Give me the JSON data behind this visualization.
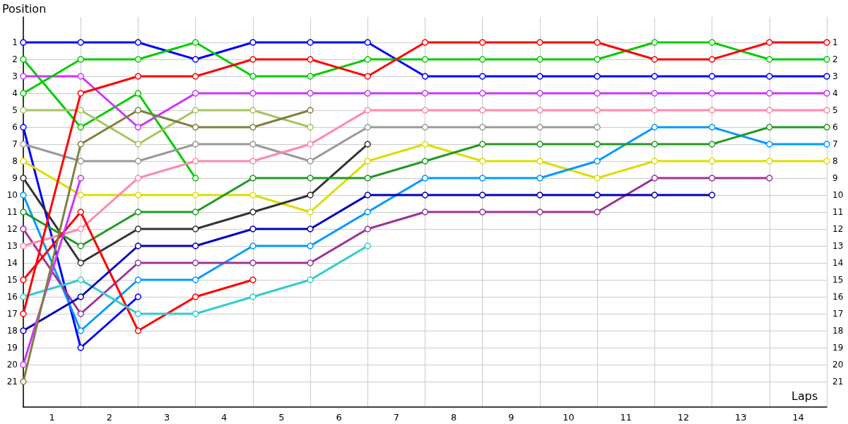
{
  "chart_data": {
    "type": "line",
    "xlabel": "Laps",
    "ylabel": "Position",
    "x": [
      0,
      1,
      2,
      3,
      4,
      5,
      6,
      7,
      8,
      9,
      10,
      11,
      12,
      13,
      14
    ],
    "xlim": [
      0,
      14
    ],
    "xticks": [
      {
        "value": 0,
        "label": null
      },
      {
        "value": 0.5,
        "label": "1"
      },
      {
        "value": 1,
        "label": null
      },
      {
        "value": 1.5,
        "label": "2"
      },
      {
        "value": 2,
        "label": null
      },
      {
        "value": 2.5,
        "label": "3"
      },
      {
        "value": 3,
        "label": null
      },
      {
        "value": 3.5,
        "label": "4"
      },
      {
        "value": 4,
        "label": null
      },
      {
        "value": 4.5,
        "label": "5"
      },
      {
        "value": 5,
        "label": null
      },
      {
        "value": 5.5,
        "label": "6"
      },
      {
        "value": 6,
        "label": null
      },
      {
        "value": 6.5,
        "label": "7"
      },
      {
        "value": 7,
        "label": null
      },
      {
        "value": 7.5,
        "label": "8"
      },
      {
        "value": 8,
        "label": null
      },
      {
        "value": 8.5,
        "label": "9"
      },
      {
        "value": 9,
        "label": null
      },
      {
        "value": 9.5,
        "label": "10"
      },
      {
        "value": 10,
        "label": null
      },
      {
        "value": 10.5,
        "label": "11"
      },
      {
        "value": 11,
        "label": null
      },
      {
        "value": 11.5,
        "label": "12"
      },
      {
        "value": 12,
        "label": null
      },
      {
        "value": 12.5,
        "label": "13"
      },
      {
        "value": 13,
        "label": null
      },
      {
        "value": 13.5,
        "label": "14"
      },
      {
        "value": 14,
        "label": null
      }
    ],
    "ylim": [
      22.5,
      -0.5
    ],
    "yticks": [
      1,
      2,
      3,
      4,
      5,
      6,
      7,
      8,
      9,
      10,
      11,
      12,
      13,
      14,
      15,
      16,
      17,
      18,
      19,
      20,
      21
    ],
    "y2lim": [
      22.5,
      -0.5
    ],
    "y2ticks": [
      1,
      2,
      3,
      4,
      5,
      6,
      7,
      8,
      9,
      10,
      11,
      12,
      13,
      14,
      15,
      16,
      17,
      18,
      19,
      20,
      21
    ],
    "grid": true,
    "marker": "circle",
    "line_style": "solid",
    "series": [
      {
        "color": "#0000ff",
        "values": [
          1,
          1,
          1,
          2,
          1,
          1,
          1,
          3,
          3,
          3,
          3,
          3,
          3,
          3,
          3
        ]
      },
      {
        "color": "#00cc00",
        "values": [
          2,
          6,
          4,
          9,
          null,
          null,
          null,
          null,
          null,
          null,
          null,
          null,
          null,
          null,
          null
        ]
      },
      {
        "color": "#cc33ff",
        "values": [
          3,
          3,
          6,
          4,
          4,
          4,
          4,
          4,
          4,
          4,
          4,
          4,
          4,
          4,
          4
        ]
      },
      {
        "color": "#00cc00",
        "values": [
          4,
          2,
          2,
          1,
          3,
          3,
          2,
          2,
          2,
          2,
          2,
          1,
          1,
          2,
          2
        ]
      },
      {
        "color": "#a8c462",
        "values": [
          5,
          5,
          7,
          5,
          5,
          6,
          null,
          null,
          null,
          null,
          null,
          null,
          null,
          null,
          null
        ]
      },
      {
        "color": "#0000ff",
        "values": [
          6,
          19,
          16,
          null,
          null,
          null,
          null,
          null,
          null,
          null,
          null,
          null,
          null,
          null,
          null
        ]
      },
      {
        "color": "#999999",
        "values": [
          7,
          8,
          8,
          7,
          7,
          8,
          6,
          6,
          6,
          6,
          6,
          null,
          null,
          null,
          null
        ]
      },
      {
        "color": "#dddd00",
        "values": [
          8,
          10,
          10,
          10,
          10,
          11,
          8,
          7,
          8,
          8,
          9,
          8,
          8,
          8,
          8
        ]
      },
      {
        "color": "#333333",
        "values": [
          9,
          14,
          12,
          12,
          11,
          10,
          7,
          null,
          null,
          null,
          null,
          null,
          null,
          null,
          null
        ]
      },
      {
        "color": "#0099ff",
        "values": [
          10,
          18,
          15,
          15,
          13,
          13,
          11,
          9,
          9,
          9,
          8,
          6,
          6,
          7,
          7
        ]
      },
      {
        "color": "#229922",
        "values": [
          11,
          13,
          11,
          11,
          9,
          9,
          9,
          8,
          7,
          7,
          7,
          7,
          7,
          6,
          6
        ]
      },
      {
        "color": "#993399",
        "values": [
          12,
          17,
          14,
          14,
          14,
          14,
          12,
          11,
          11,
          11,
          11,
          9,
          9,
          9,
          null
        ]
      },
      {
        "color": "#ff88aa",
        "values": [
          13,
          12,
          9,
          8,
          8,
          7,
          5,
          5,
          5,
          5,
          5,
          5,
          5,
          5,
          5
        ]
      },
      {
        "color": "#ff0000",
        "values": [
          15,
          11,
          18,
          16,
          15,
          null,
          null,
          null,
          null,
          null,
          null,
          null,
          null,
          null,
          null
        ]
      },
      {
        "color": "#33cccc",
        "values": [
          16,
          15,
          17,
          17,
          16,
          15,
          13,
          null,
          null,
          null,
          null,
          null,
          null,
          null,
          null
        ]
      },
      {
        "color": "#ff0000",
        "values": [
          17,
          4,
          3,
          3,
          2,
          2,
          3,
          1,
          1,
          1,
          1,
          2,
          2,
          1,
          1
        ]
      },
      {
        "color": "#0000bb",
        "values": [
          18,
          16,
          13,
          13,
          12,
          12,
          10,
          10,
          10,
          10,
          10,
          10,
          10,
          null,
          null
        ]
      },
      {
        "color": "#cc33ff",
        "values": [
          20,
          9,
          null,
          null,
          null,
          null,
          null,
          null,
          null,
          null,
          null,
          null,
          null,
          null,
          null
        ]
      },
      {
        "color": "#808040",
        "values": [
          21,
          7,
          5,
          6,
          6,
          5,
          null,
          null,
          null,
          null,
          null,
          null,
          null,
          null,
          null
        ]
      }
    ]
  }
}
